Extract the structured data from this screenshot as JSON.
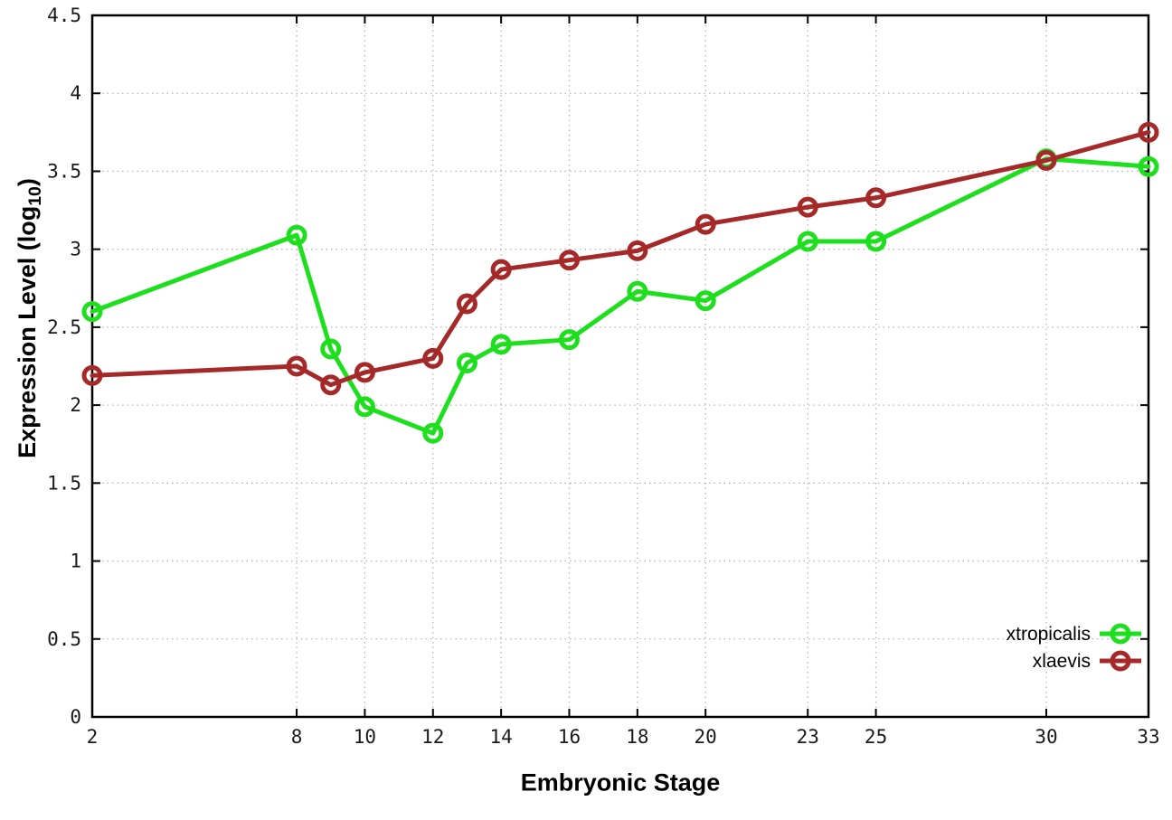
{
  "chart_data": {
    "type": "line",
    "title": "",
    "xlabel": "Embryonic Stage",
    "ylabel": "Expression Level (log10)",
    "ylabel_parts": {
      "prefix": "Expression Level (log",
      "sub": "10",
      "suffix": ")"
    },
    "x": [
      2,
      8,
      9,
      10,
      12,
      13,
      14,
      16,
      18,
      20,
      23,
      25,
      30,
      33
    ],
    "series": [
      {
        "name": "xtropicalis",
        "color": "#1ddf1d",
        "values": [
          2.6,
          3.09,
          2.36,
          1.99,
          1.82,
          2.27,
          2.39,
          2.42,
          2.73,
          2.67,
          3.05,
          3.05,
          3.58,
          3.53
        ]
      },
      {
        "name": "xlaevis",
        "color": "#a62929",
        "values": [
          2.19,
          2.25,
          2.13,
          2.21,
          2.3,
          2.65,
          2.87,
          2.93,
          2.99,
          3.16,
          3.27,
          3.33,
          3.57,
          3.75
        ]
      }
    ],
    "xlim": [
      2,
      33
    ],
    "ylim": [
      0,
      4.5
    ],
    "x_ticks": [
      2,
      8,
      10,
      12,
      14,
      16,
      18,
      20,
      23,
      25,
      30,
      33
    ],
    "x_tick_labels": [
      "2",
      "8",
      "10",
      "12",
      "14",
      "16",
      "18",
      "20",
      "23",
      "25",
      "30",
      "33"
    ],
    "y_ticks": [
      0,
      0.5,
      1,
      1.5,
      2,
      2.5,
      3,
      3.5,
      4,
      4.5
    ],
    "y_tick_labels": [
      "0",
      "0.5",
      "1",
      "1.5",
      "2",
      "2.5",
      "3",
      "3.5",
      "4",
      "4.5"
    ],
    "grid": true,
    "legend_position": "bottom-right",
    "marker": "open-circle",
    "style": {
      "grid_color": "#b5b5b5",
      "frame_color": "#000000",
      "background": "#ffffff",
      "line_width": 5,
      "marker_radius": 9,
      "marker_stroke": 5
    }
  }
}
